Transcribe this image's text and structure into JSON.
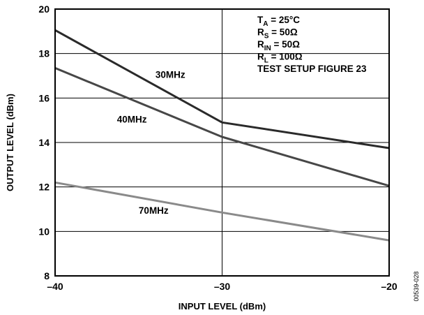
{
  "chart_data": {
    "type": "line",
    "xlabel": "INPUT LEVEL (dBm)",
    "ylabel": "OUTPUT LEVEL (dBm)",
    "xlim": [
      -40,
      -20
    ],
    "ylim": [
      8,
      20
    ],
    "x_ticks": [
      -40,
      -30,
      -20
    ],
    "x_tick_labels": [
      "–40",
      "–30",
      "–20"
    ],
    "y_ticks": [
      8,
      10,
      12,
      14,
      16,
      18,
      20
    ],
    "y_tick_labels": [
      "8",
      "10",
      "12",
      "14",
      "16",
      "18",
      "20"
    ],
    "grid": true,
    "series": [
      {
        "name": "30MHz",
        "color": "#2a2a2a",
        "x": [
          -40,
          -30,
          -20
        ],
        "y": [
          19.05,
          14.9,
          13.75
        ]
      },
      {
        "name": "40MHz",
        "color": "#474747",
        "x": [
          -40,
          -30,
          -20
        ],
        "y": [
          17.35,
          14.25,
          12.05
        ]
      },
      {
        "name": "70MHz",
        "color": "#8a8a8a",
        "x": [
          -40,
          -30,
          -20
        ],
        "y": [
          12.2,
          10.85,
          9.6
        ]
      }
    ],
    "conditions": [
      {
        "main": "T",
        "sub": "A",
        "rest": " = 25°C"
      },
      {
        "main": "R",
        "sub": "S",
        "rest": " = 50Ω"
      },
      {
        "main": "R",
        "sub": "IN",
        "rest": " = 50Ω"
      },
      {
        "main": "R",
        "sub": "L",
        "rest": " = 100Ω"
      },
      {
        "main": "TEST SETUP FIGURE 23",
        "sub": "",
        "rest": ""
      }
    ],
    "figure_id": "00539-028"
  }
}
